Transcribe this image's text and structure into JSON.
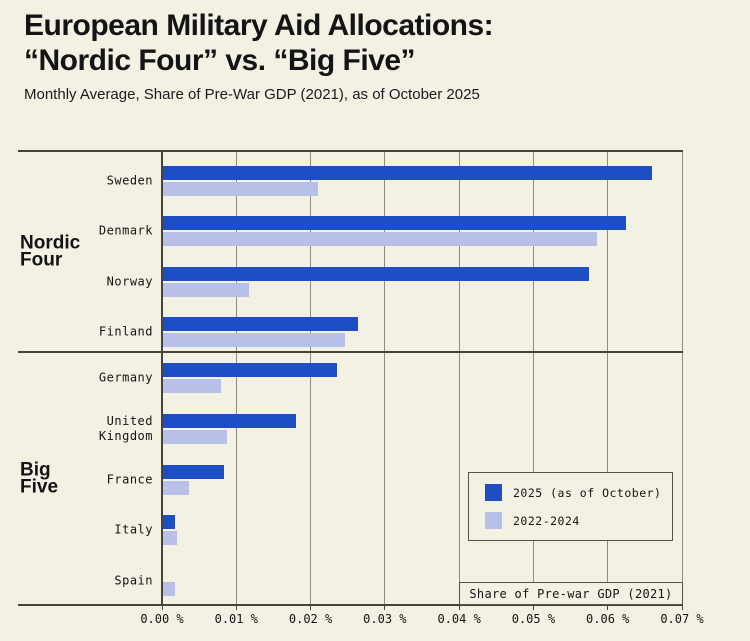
{
  "header": {
    "title_line1": "European Military Aid Allocations:",
    "title_line2": "“Nordic Four” vs. “Big Five”",
    "subtitle": "Monthly Average, Share of Pre-War GDP (2021), as of October 2025"
  },
  "colors": {
    "bar_2025": "#1e4ec4",
    "bar_2022_2024": "#b9c0e8",
    "background": "#f3f0e4",
    "grid_line": "#8f8d81",
    "frame_line": "#45433c",
    "text": "#141414"
  },
  "legend": {
    "items": [
      {
        "label": "2025 (as of October)",
        "series_key": "bar_2025"
      },
      {
        "label": "2022-2024",
        "series_key": "bar_2022_2024"
      }
    ]
  },
  "chart_data": {
    "type": "bar",
    "orientation": "horizontal",
    "title": "European Military Aid Allocations: “Nordic Four” vs. “Big Five”",
    "subtitle": "Monthly Average, Share of Pre-War GDP (2021), as of October 2025",
    "xlabel": "Share of Pre-war GDP (2021)",
    "unit": "%",
    "xlim": [
      0,
      0.07
    ],
    "grid": true,
    "legend_position": "lower right",
    "x_ticks": [
      {
        "value": 0.0,
        "label": "0.00 %"
      },
      {
        "value": 0.01,
        "label": "0.01 %"
      },
      {
        "value": 0.02,
        "label": "0.02 %"
      },
      {
        "value": 0.03,
        "label": "0.03 %"
      },
      {
        "value": 0.04,
        "label": "0.04 %"
      },
      {
        "value": 0.05,
        "label": "0.05 %"
      },
      {
        "value": 0.06,
        "label": "0.06 %"
      },
      {
        "value": 0.07,
        "label": "0.07 %"
      }
    ],
    "series_names": [
      "2025 (as of October)",
      "2022-2024"
    ],
    "groups": [
      {
        "label": "Nordic Four",
        "label_lines": "Nordic\nFour",
        "rows": [
          {
            "country": "Sweden",
            "label_lines": "Sweden",
            "values": [
              0.066,
              0.021
            ]
          },
          {
            "country": "Denmark",
            "label_lines": "Denmark",
            "values": [
              0.0625,
              0.0585
            ]
          },
          {
            "country": "Norway",
            "label_lines": "Norway",
            "values": [
              0.0575,
              0.0117
            ]
          },
          {
            "country": "Finland",
            "label_lines": "Finland",
            "values": [
              0.0264,
              0.0246
            ]
          }
        ]
      },
      {
        "label": "Big Five",
        "label_lines": "Big\nFive",
        "rows": [
          {
            "country": "Germany",
            "label_lines": "Germany",
            "values": [
              0.0235,
              0.008
            ]
          },
          {
            "country": "United Kingdom",
            "label_lines": "United\nKingdom",
            "values": [
              0.018,
              0.0087
            ]
          },
          {
            "country": "France",
            "label_lines": "France",
            "values": [
              0.0084,
              0.0036
            ]
          },
          {
            "country": "Italy",
            "label_lines": "Italy",
            "values": [
              0.0017,
              0.002
            ]
          },
          {
            "country": "Spain",
            "label_lines": "Spain",
            "values": [
              0.0,
              0.0017
            ]
          }
        ]
      }
    ]
  }
}
